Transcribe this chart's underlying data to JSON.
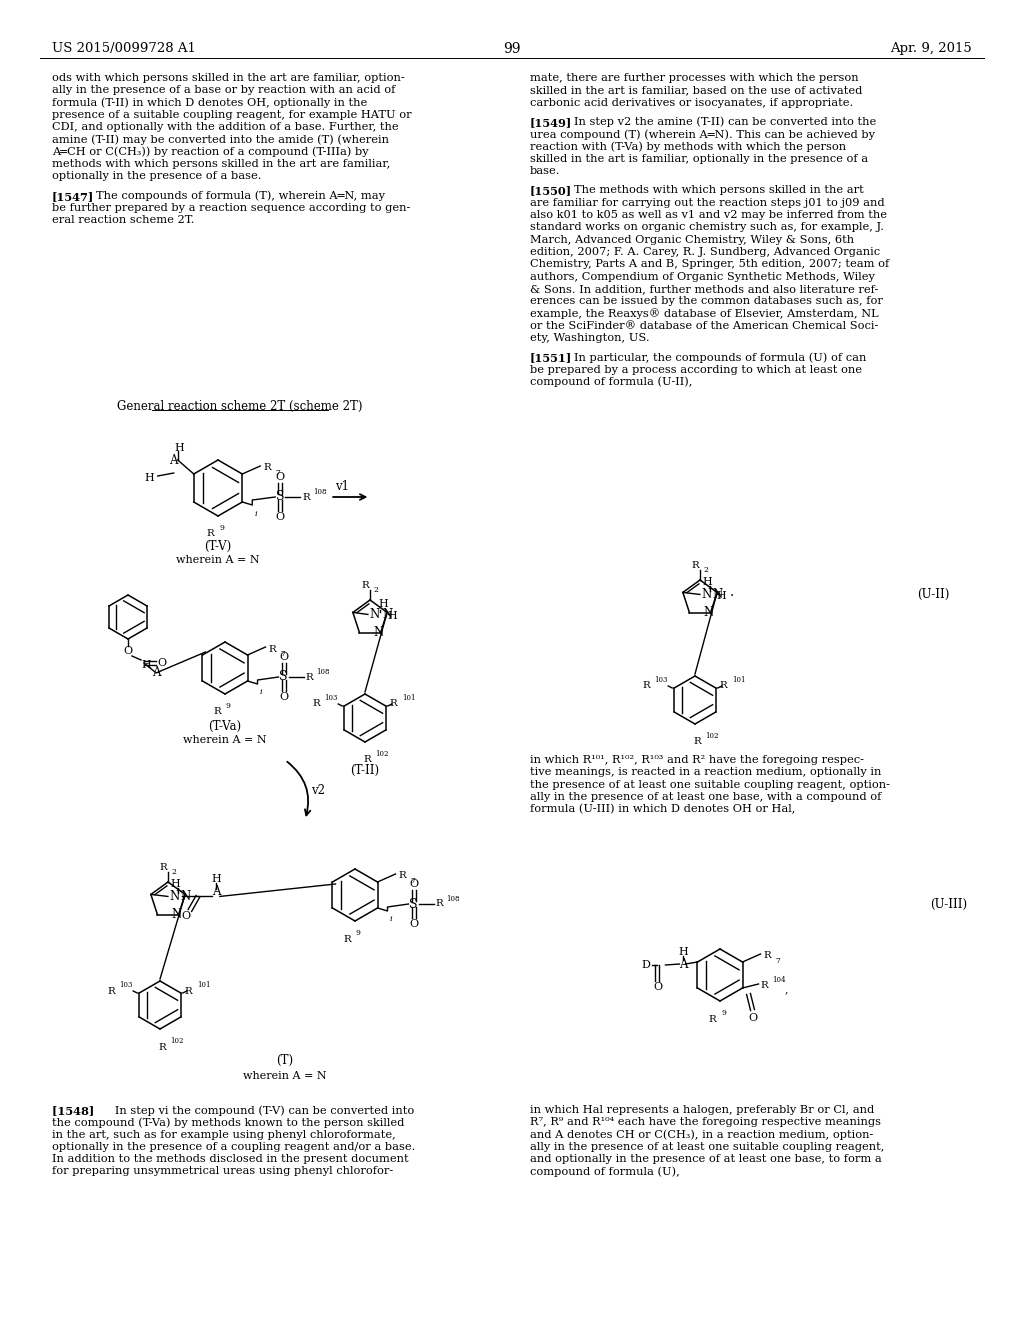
{
  "bg": "#ffffff",
  "header_left": "US 2015/0099728 A1",
  "header_center": "99",
  "header_right": "Apr. 9, 2015"
}
